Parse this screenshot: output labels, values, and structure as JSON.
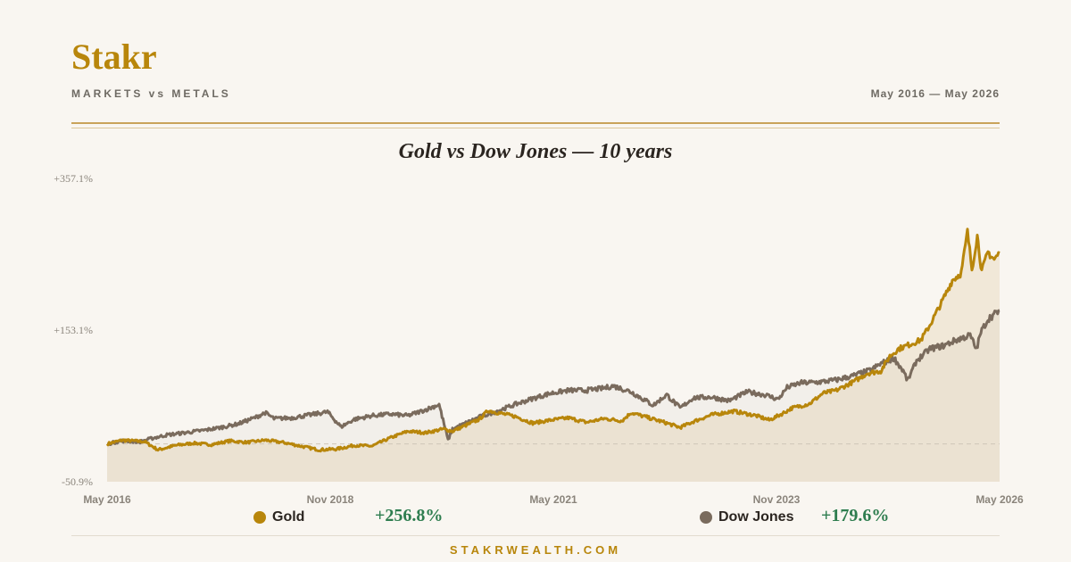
{
  "header": {
    "brand": "Stakr",
    "subtitle": "MARKETS vs METALS",
    "date_range": "May 2016 — May 2026"
  },
  "footer": {
    "site": "STAKRWEALTH.COM"
  },
  "colors": {
    "gold": "#b8860b",
    "dow": "#7a6b5d",
    "accent": "#c9a35a",
    "positive": "#2e7d4f"
  },
  "legend": [
    {
      "name": "Gold",
      "value": "+256.8%"
    },
    {
      "name": "Dow Jones",
      "value": "+179.6%"
    }
  ],
  "chart_data": {
    "type": "line",
    "title": "Gold vs Dow Jones — 10 years",
    "ylim": [
      -50.9,
      357.1
    ],
    "y_tick_labels": [
      "+357.1%",
      "+153.1%",
      "-50.9%"
    ],
    "y_ticks": [
      357.1,
      153.1,
      -50.9
    ],
    "x_tick_labels": [
      "May 2016",
      "Nov 2018",
      "May 2021",
      "Nov 2023",
      "May 2026"
    ],
    "x_ticks": [
      2016.33,
      2018.83,
      2021.33,
      2023.83,
      2026.33
    ],
    "xlim": [
      2016.33,
      2026.33
    ],
    "baseline": 0,
    "grid": false,
    "legend_position": "bottom",
    "series": [
      {
        "name": "Gold",
        "final_value": 256.8,
        "points": [
          [
            2016.33,
            0
          ],
          [
            2016.5,
            5
          ],
          [
            2016.75,
            3
          ],
          [
            2016.9,
            -8
          ],
          [
            2017.1,
            -2
          ],
          [
            2017.3,
            1
          ],
          [
            2017.5,
            -1
          ],
          [
            2017.7,
            4
          ],
          [
            2017.9,
            2
          ],
          [
            2018.1,
            5
          ],
          [
            2018.3,
            2
          ],
          [
            2018.5,
            -3
          ],
          [
            2018.7,
            -8
          ],
          [
            2018.9,
            -7
          ],
          [
            2019.1,
            -2
          ],
          [
            2019.3,
            -3
          ],
          [
            2019.5,
            8
          ],
          [
            2019.7,
            17
          ],
          [
            2019.9,
            15
          ],
          [
            2020.1,
            20
          ],
          [
            2020.2,
            17
          ],
          [
            2020.35,
            25
          ],
          [
            2020.5,
            33
          ],
          [
            2020.6,
            45
          ],
          [
            2020.7,
            42
          ],
          [
            2020.9,
            37
          ],
          [
            2021.1,
            28
          ],
          [
            2021.3,
            32
          ],
          [
            2021.5,
            35
          ],
          [
            2021.7,
            29
          ],
          [
            2021.9,
            34
          ],
          [
            2022.1,
            31
          ],
          [
            2022.2,
            42
          ],
          [
            2022.4,
            35
          ],
          [
            2022.6,
            28
          ],
          [
            2022.75,
            22
          ],
          [
            2022.9,
            30
          ],
          [
            2023.1,
            39
          ],
          [
            2023.35,
            44
          ],
          [
            2023.6,
            38
          ],
          [
            2023.75,
            32
          ],
          [
            2023.9,
            41
          ],
          [
            2024.0,
            48
          ],
          [
            2024.2,
            54
          ],
          [
            2024.35,
            68
          ],
          [
            2024.5,
            72
          ],
          [
            2024.7,
            84
          ],
          [
            2024.85,
            95
          ],
          [
            2025.0,
            98
          ],
          [
            2025.1,
            118
          ],
          [
            2025.2,
            128
          ],
          [
            2025.35,
            135
          ],
          [
            2025.45,
            140
          ],
          [
            2025.55,
            160
          ],
          [
            2025.7,
            195
          ],
          [
            2025.8,
            220
          ],
          [
            2025.9,
            230
          ],
          [
            2025.97,
            285
          ],
          [
            2026.02,
            235
          ],
          [
            2026.08,
            280
          ],
          [
            2026.13,
            232
          ],
          [
            2026.2,
            258
          ],
          [
            2026.27,
            248
          ],
          [
            2026.33,
            256.8
          ]
        ]
      },
      {
        "name": "Dow Jones",
        "final_value": 179.6,
        "points": [
          [
            2016.33,
            0
          ],
          [
            2016.5,
            4
          ],
          [
            2016.7,
            3
          ],
          [
            2016.85,
            8
          ],
          [
            2017.0,
            12
          ],
          [
            2017.2,
            15
          ],
          [
            2017.4,
            18
          ],
          [
            2017.6,
            22
          ],
          [
            2017.8,
            27
          ],
          [
            2018.0,
            36
          ],
          [
            2018.1,
            42
          ],
          [
            2018.2,
            34
          ],
          [
            2018.4,
            35
          ],
          [
            2018.6,
            39
          ],
          [
            2018.8,
            43
          ],
          [
            2018.95,
            23
          ],
          [
            2019.1,
            33
          ],
          [
            2019.3,
            38
          ],
          [
            2019.5,
            40
          ],
          [
            2019.7,
            38
          ],
          [
            2019.9,
            46
          ],
          [
            2020.05,
            53
          ],
          [
            2020.15,
            5
          ],
          [
            2020.2,
            20
          ],
          [
            2020.35,
            28
          ],
          [
            2020.5,
            36
          ],
          [
            2020.7,
            44
          ],
          [
            2020.9,
            53
          ],
          [
            2021.1,
            61
          ],
          [
            2021.3,
            68
          ],
          [
            2021.5,
            72
          ],
          [
            2021.7,
            72
          ],
          [
            2021.9,
            75
          ],
          [
            2022.0,
            78
          ],
          [
            2022.2,
            70
          ],
          [
            2022.45,
            52
          ],
          [
            2022.6,
            66
          ],
          [
            2022.75,
            48
          ],
          [
            2022.9,
            62
          ],
          [
            2023.1,
            63
          ],
          [
            2023.3,
            58
          ],
          [
            2023.5,
            70
          ],
          [
            2023.7,
            66
          ],
          [
            2023.85,
            60
          ],
          [
            2023.95,
            76
          ],
          [
            2024.1,
            82
          ],
          [
            2024.3,
            83
          ],
          [
            2024.5,
            86
          ],
          [
            2024.7,
            92
          ],
          [
            2024.9,
            100
          ],
          [
            2025.0,
            108
          ],
          [
            2025.15,
            115
          ],
          [
            2025.25,
            98
          ],
          [
            2025.3,
            85
          ],
          [
            2025.4,
            112
          ],
          [
            2025.55,
            128
          ],
          [
            2025.7,
            132
          ],
          [
            2025.85,
            140
          ],
          [
            2026.0,
            146
          ],
          [
            2026.07,
            127
          ],
          [
            2026.12,
            150
          ],
          [
            2026.2,
            168
          ],
          [
            2026.33,
            179.6
          ]
        ]
      }
    ]
  }
}
